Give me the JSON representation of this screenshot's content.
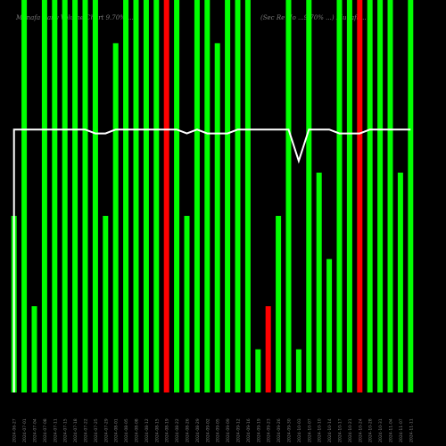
{
  "header": {
    "left": "Munafa Daily Volume Chart 9.70% ...",
    "right": "(Sec Re  No ...9.70% ...) Munafa..."
  },
  "colors": {
    "background": "#000000",
    "bar_up": "#00ff00",
    "bar_down": "#ff0000",
    "line": "#ffffff",
    "text": "#7a7a7a"
  },
  "chart_data": {
    "type": "bar",
    "ylim": [
      0,
      1
    ],
    "grid": false,
    "categories": [
      "2024-06-27",
      "2024-07-01",
      "2024-07-04",
      "2024-07-08",
      "2024-07-11",
      "2024-07-15",
      "2024-07-18",
      "2024-07-22",
      "2024-07-25",
      "2024-07-29",
      "2024-08-01",
      "2024-08-05",
      "2024-08-08",
      "2024-08-12",
      "2024-08-15",
      "2024-08-19",
      "2024-08-22",
      "2024-08-26",
      "2024-08-29",
      "2024-09-02",
      "2024-09-05",
      "2024-09-09",
      "2024-09-12",
      "2024-09-16",
      "2024-09-19",
      "2024-09-23",
      "2024-09-26",
      "2024-09-30",
      "2024-10-03",
      "2024-10-07",
      "2024-10-10",
      "2024-10-14",
      "2024-10-17",
      "2024-10-21",
      "2024-10-24",
      "2024-10-28",
      "2024-10-31",
      "2024-11-04",
      "2024-11-07",
      "2024-11-11"
    ],
    "series": [
      {
        "values": [
          0.45,
          1,
          0.22,
          1,
          1,
          1,
          1,
          1,
          1,
          0.45,
          0.89,
          1,
          1,
          1,
          1,
          1,
          1,
          0.45,
          1,
          1,
          0.89,
          1,
          1,
          1,
          0.11,
          0.22,
          0.45,
          1,
          0.11,
          1,
          0.56,
          0.34,
          1,
          1,
          1,
          1,
          1,
          1,
          0.56,
          1
        ],
        "up": [
          true,
          true,
          true,
          true,
          true,
          true,
          true,
          true,
          true,
          true,
          true,
          true,
          true,
          true,
          true,
          false,
          true,
          true,
          true,
          true,
          true,
          true,
          true,
          true,
          true,
          false,
          true,
          true,
          true,
          true,
          true,
          true,
          true,
          true,
          false,
          true,
          true,
          true,
          true,
          true
        ]
      },
      {
        "values": [
          0.67,
          0.67,
          0.67,
          0.67,
          0.67,
          0.67,
          0.67,
          0.67,
          0.66,
          0.66,
          0.67,
          0.67,
          0.67,
          0.67,
          0.67,
          0.67,
          0.67,
          0.66,
          0.67,
          0.66,
          0.66,
          0.66,
          0.67,
          0.67,
          0.67,
          0.67,
          0.67,
          0.67,
          0.59,
          0.67,
          0.67,
          0.67,
          0.66,
          0.66,
          0.66,
          0.67,
          0.67,
          0.67,
          0.67,
          0.67
        ]
      }
    ]
  }
}
